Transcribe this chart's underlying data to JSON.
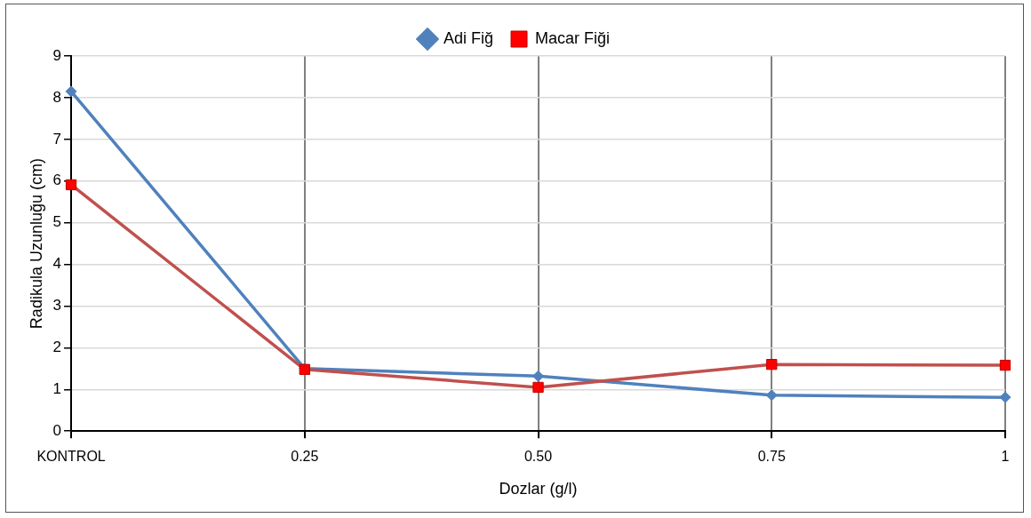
{
  "chart_data": {
    "type": "line",
    "xlabel": "Dozlar (g/l)",
    "ylabel": "Radikula Uzunluğu (cm)",
    "categories": [
      "KONTROL",
      "0.25",
      "0.50",
      "0.75",
      "1"
    ],
    "series": [
      {
        "name": "Adi Fiğ",
        "color": "#4f81bd",
        "marker": "diamond",
        "values": [
          8.15,
          1.5,
          1.32,
          0.86,
          0.81
        ]
      },
      {
        "name": "Macar Fiği",
        "color": "#c0504d",
        "marker": "square",
        "values": [
          5.91,
          1.48,
          1.05,
          1.6,
          1.58
        ]
      }
    ],
    "ylim": [
      0,
      9
    ],
    "yticks": [
      0,
      1,
      2,
      3,
      4,
      5,
      6,
      7,
      8,
      9
    ],
    "grid": true,
    "legend": "top",
    "line_style": "solid"
  }
}
